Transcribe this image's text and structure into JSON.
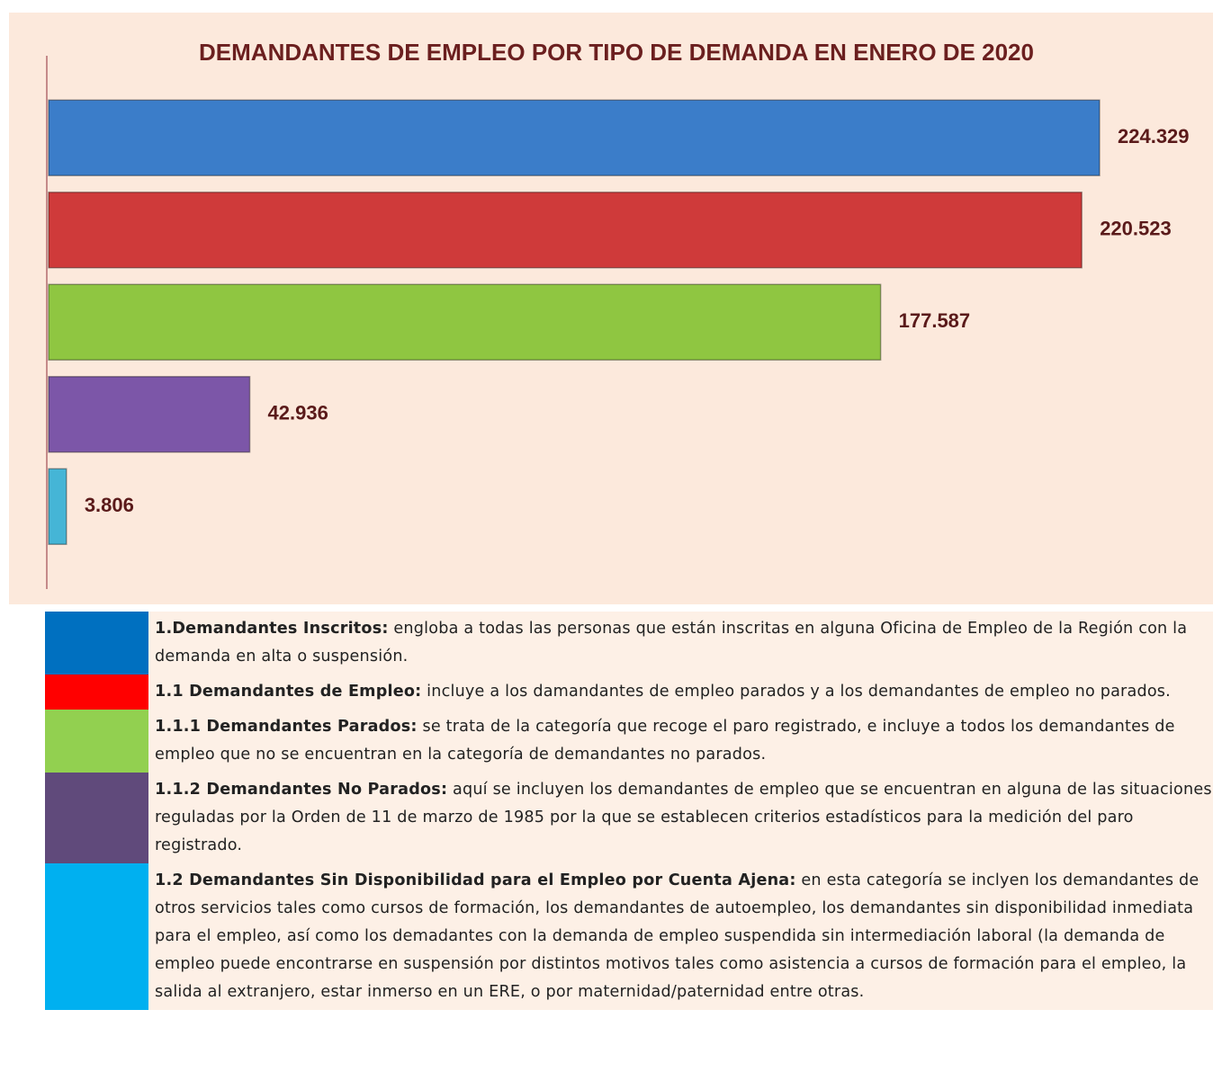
{
  "chart_data": {
    "type": "hbar",
    "title": "DEMANDANTES DE EMPLEO POR TIPO DE DEMANDA EN ENERO DE 2020",
    "categories": [
      null,
      null,
      null,
      null,
      null
    ],
    "values": [
      224329,
      220523,
      177587,
      42936,
      3806
    ],
    "value_labels": [
      "224.329",
      "220.523",
      "177.587",
      "42.936",
      "3.806"
    ],
    "colors": [
      "#3b7dc9",
      "#cf3a3a",
      "#8fc641",
      "#7c56a8",
      "#45b5d6"
    ],
    "xlim": [
      0,
      240000
    ]
  },
  "legend": [
    {
      "color": "#0070c0",
      "term": "1.Demandantes Inscritos:",
      "description": "engloba a todas las personas que están inscritas en alguna Oficina de Empleo de la Región con la demanda en alta o suspensión."
    },
    {
      "color": "#ff0000",
      "term": "1.1 Demandantes de Empleo:",
      "description": "incluye a los damandantes de empleo parados y a los demandantes de empleo no parados."
    },
    {
      "color": "#92d050",
      "term": "1.1.1 Demandantes Parados:",
      "description": "se trata de la categoría que recoge el paro registrado, e incluye a todos los demandantes de empleo que no se encuentran en la categoría de demandantes no parados."
    },
    {
      "color": "#604a7b",
      "term": "1.1.2 Demandantes No Parados:",
      "description": "aquí se incluyen los demandantes de empleo que se encuentran en alguna de las situaciones reguladas por la Orden de 11 de marzo de 1985 por la que se establecen criterios estadísticos para la medición del paro registrado."
    },
    {
      "color": "#00b0f0",
      "term": "1.2 Demandantes Sin Disponibilidad para el Empleo por Cuenta Ajena:",
      "description": "en esta categoría se inclyen los demandantes de otros servicios tales como cursos de formación, los demandantes de autoempleo, los demandantes sin disponibilidad inmediata para el empleo, así como los demadantes con la demanda de empleo suspendida sin intermediación laboral (la demanda de empleo puede encontrarse en suspensión por distintos motivos tales como asistencia a cursos de formación para el empleo, la salida al extranjero, estar inmerso en un ERE, o por maternidad/paternidad entre otras."
    }
  ]
}
